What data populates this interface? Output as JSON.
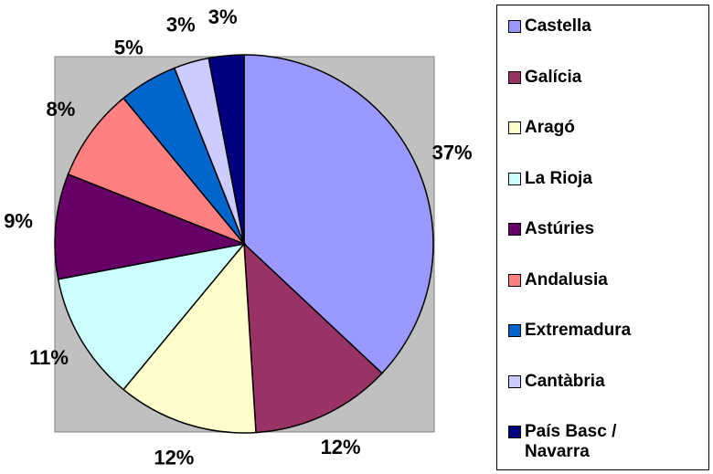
{
  "chart_data": {
    "type": "pie",
    "categories": [
      "Castella",
      "Galícia",
      "Aragó",
      "La Rioja",
      "Astúries",
      "Andalusia",
      "Extremadura",
      "Cantàbria",
      "País Basc / Navarra"
    ],
    "values": [
      37,
      12,
      12,
      11,
      9,
      8,
      5,
      3,
      3
    ],
    "value_labels": [
      "37%",
      "12%",
      "12%",
      "11%",
      "9%",
      "8%",
      "5%",
      "3%",
      "3%"
    ],
    "colors": [
      "#9999ff",
      "#993366",
      "#ffffcc",
      "#ccffff",
      "#660066",
      "#ff8080",
      "#0066cc",
      "#ccccff",
      "#000080"
    ],
    "legend": "right"
  }
}
